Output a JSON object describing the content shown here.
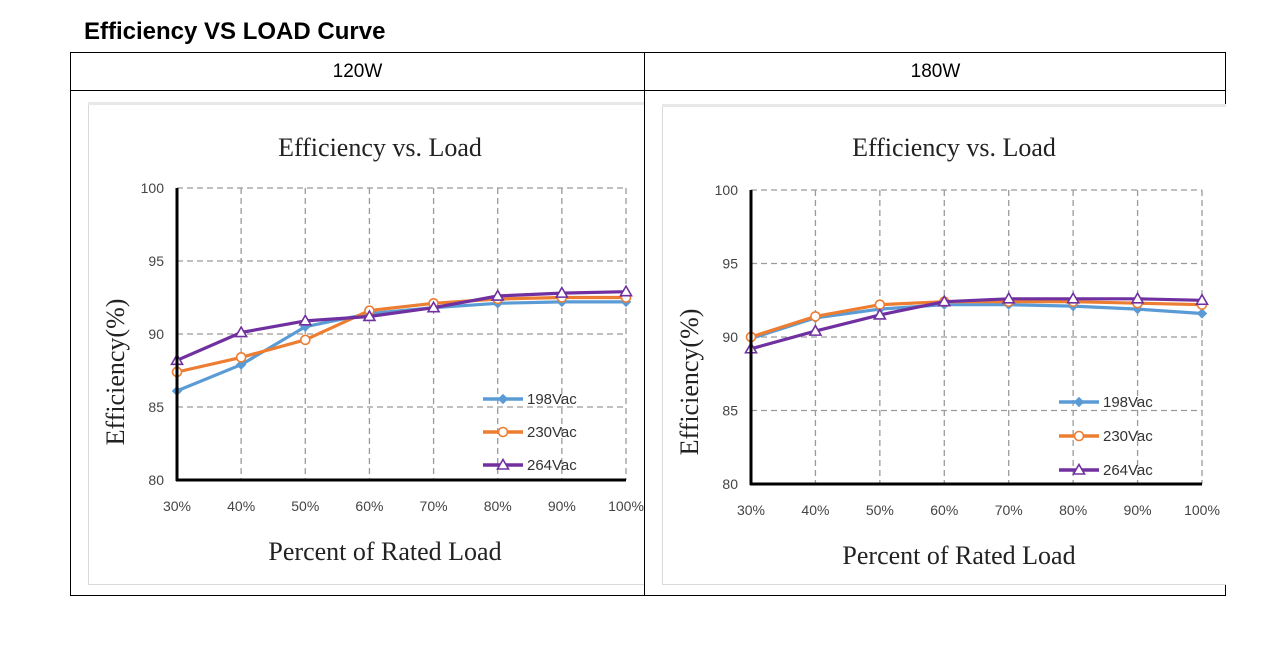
{
  "page": {
    "title": "Efficiency VS LOAD Curve",
    "col_headers": [
      "120W",
      "180W"
    ]
  },
  "colors": {
    "series_198": "#5b9bd5",
    "series_230": "#ed7d31",
    "series_264": "#7030a0",
    "grid": "#9a9a9a",
    "axis": "#000000"
  },
  "chart_data": [
    {
      "type": "line",
      "panel": "120W",
      "title": "Efficiency vs. Load",
      "xlabel": "Percent of Rated Load",
      "ylabel": "Efficiency(%)",
      "categories": [
        "30%",
        "40%",
        "50%",
        "60%",
        "70%",
        "80%",
        "90%",
        "100%"
      ],
      "ylim": [
        80,
        100
      ],
      "yticks": [
        "80",
        "85",
        "90",
        "95",
        "100"
      ],
      "legend_position": "lower-right",
      "series": [
        {
          "name": "198Vac",
          "marker": "diamond",
          "values": [
            86.1,
            87.9,
            90.5,
            91.4,
            91.8,
            92.1,
            92.2,
            92.2
          ]
        },
        {
          "name": "230Vac",
          "marker": "circle",
          "values": [
            87.4,
            88.4,
            89.6,
            91.6,
            92.1,
            92.4,
            92.5,
            92.5
          ]
        },
        {
          "name": "264Vac",
          "marker": "triangle",
          "values": [
            88.2,
            90.1,
            90.9,
            91.2,
            91.8,
            92.6,
            92.8,
            92.9
          ]
        }
      ]
    },
    {
      "type": "line",
      "panel": "180W",
      "title": "Efficiency vs. Load",
      "xlabel": "Percent of Rated Load",
      "ylabel": "Efficiency(%)",
      "categories": [
        "30%",
        "40%",
        "50%",
        "60%",
        "70%",
        "80%",
        "90%",
        "100%"
      ],
      "ylim": [
        80,
        100
      ],
      "yticks": [
        "80",
        "85",
        "90",
        "95",
        "100"
      ],
      "legend_position": "lower-right",
      "series": [
        {
          "name": "198Vac",
          "marker": "diamond",
          "values": [
            89.9,
            91.3,
            91.9,
            92.2,
            92.2,
            92.1,
            91.9,
            91.6
          ]
        },
        {
          "name": "230Vac",
          "marker": "circle",
          "values": [
            90.0,
            91.4,
            92.2,
            92.4,
            92.4,
            92.4,
            92.3,
            92.2
          ]
        },
        {
          "name": "264Vac",
          "marker": "triangle",
          "values": [
            89.2,
            90.4,
            91.5,
            92.4,
            92.6,
            92.6,
            92.6,
            92.5
          ]
        }
      ]
    }
  ]
}
